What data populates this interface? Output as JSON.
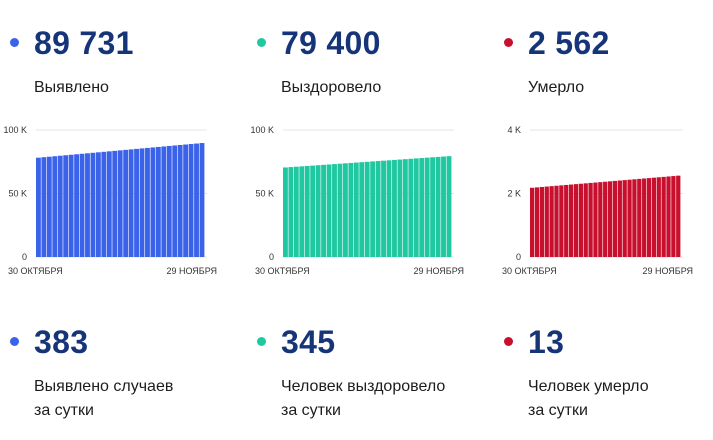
{
  "cards": [
    {
      "id": "detected",
      "color": "#3b63ea",
      "total": "89 731",
      "total_label": "Выявлено",
      "daily": "383",
      "daily_label_1": "Выявлено случаев",
      "daily_label_2": "за сутки"
    },
    {
      "id": "recovered",
      "color": "#1fc8a0",
      "total": "79 400",
      "total_label": "Выздоровело",
      "daily": "345",
      "daily_label_1": "Человек выздоровело",
      "daily_label_2": "за сутки"
    },
    {
      "id": "died",
      "color": "#c8102e",
      "total": "2 562",
      "total_label": "Умерло",
      "daily": "13",
      "daily_label_1": "Человек умерло",
      "daily_label_2": "за сутки"
    }
  ],
  "chart_data": [
    {
      "type": "bar",
      "title": "",
      "series": [
        {
          "name": "",
          "color": "#3b63ea",
          "start": 78200,
          "end": 89731
        }
      ],
      "bar_count": 31,
      "ylim": [
        0,
        100000
      ],
      "yticks": [
        "0",
        "50 K",
        "100 K"
      ],
      "ytick_values": [
        0,
        50000,
        100000
      ],
      "x_start_label": "30 ОКТЯБРЯ",
      "x_end_label": "29 НОЯБРЯ",
      "grid": true
    },
    {
      "type": "bar",
      "title": "",
      "series": [
        {
          "name": "",
          "color": "#1fc8a0",
          "start": 70500,
          "end": 79400
        }
      ],
      "bar_count": 31,
      "ylim": [
        0,
        100000
      ],
      "yticks": [
        "0",
        "50 K",
        "100 K"
      ],
      "ytick_values": [
        0,
        50000,
        100000
      ],
      "x_start_label": "30 ОКТЯБРЯ",
      "x_end_label": "29 НОЯБРЯ",
      "grid": true
    },
    {
      "type": "bar",
      "title": "",
      "series": [
        {
          "name": "",
          "color": "#c8102e",
          "start": 2180,
          "end": 2562
        }
      ],
      "bar_count": 31,
      "ylim": [
        0,
        4000
      ],
      "yticks": [
        "0",
        "2 K",
        "4 K"
      ],
      "ytick_values": [
        0,
        2000,
        4000
      ],
      "x_start_label": "30 ОКТЯБРЯ",
      "x_end_label": "29 НОЯБРЯ",
      "grid": true
    }
  ]
}
